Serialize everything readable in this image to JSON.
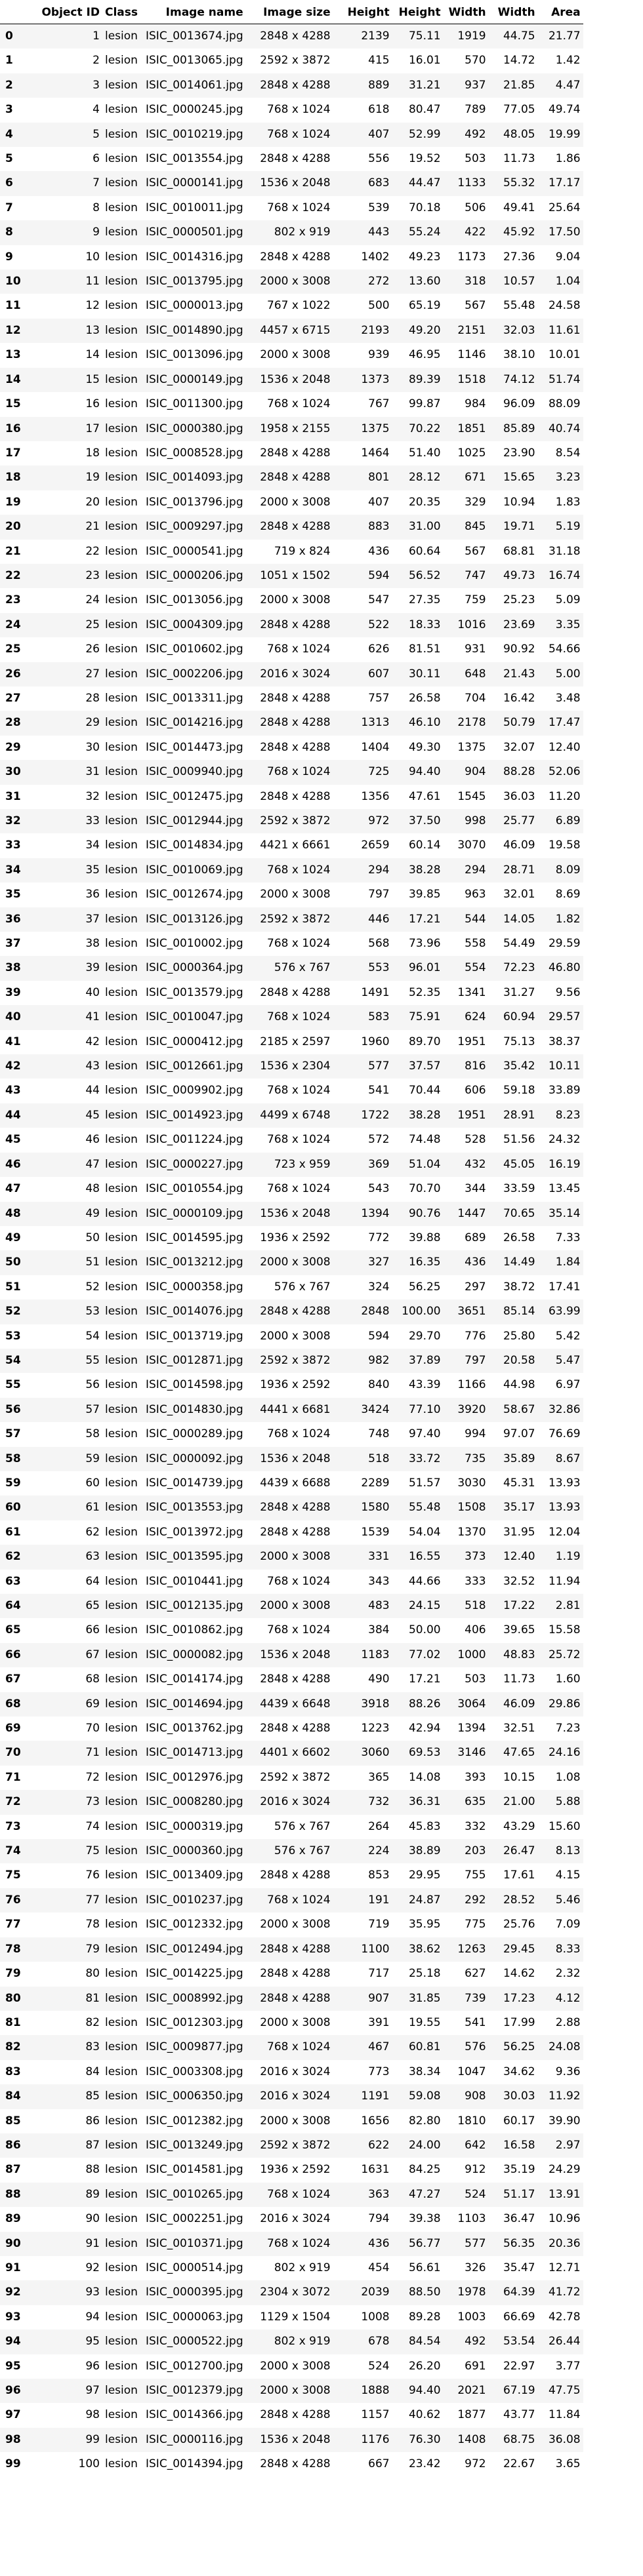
{
  "columns": [
    "",
    "Object ID",
    "Class",
    "Image name",
    "Image size",
    "Height",
    "Height",
    "Width",
    "Width",
    "Area"
  ],
  "rows": [
    [
      "0",
      "1",
      "lesion",
      "ISIC_0013674.jpg",
      "2848 x 4288",
      "2139",
      "75.11",
      "1919",
      "44.75",
      "21.77"
    ],
    [
      "1",
      "2",
      "lesion",
      "ISIC_0013065.jpg",
      "2592 x 3872",
      "415",
      "16.01",
      "570",
      "14.72",
      "1.42"
    ],
    [
      "2",
      "3",
      "lesion",
      "ISIC_0014061.jpg",
      "2848 x 4288",
      "889",
      "31.21",
      "937",
      "21.85",
      "4.47"
    ],
    [
      "3",
      "4",
      "lesion",
      "ISIC_0000245.jpg",
      "768 x 1024",
      "618",
      "80.47",
      "789",
      "77.05",
      "49.74"
    ],
    [
      "4",
      "5",
      "lesion",
      "ISIC_0010219.jpg",
      "768 x 1024",
      "407",
      "52.99",
      "492",
      "48.05",
      "19.99"
    ],
    [
      "5",
      "6",
      "lesion",
      "ISIC_0013554.jpg",
      "2848 x 4288",
      "556",
      "19.52",
      "503",
      "11.73",
      "1.86"
    ],
    [
      "6",
      "7",
      "lesion",
      "ISIC_0000141.jpg",
      "1536 x 2048",
      "683",
      "44.47",
      "1133",
      "55.32",
      "17.17"
    ],
    [
      "7",
      "8",
      "lesion",
      "ISIC_0010011.jpg",
      "768 x 1024",
      "539",
      "70.18",
      "506",
      "49.41",
      "25.64"
    ],
    [
      "8",
      "9",
      "lesion",
      "ISIC_0000501.jpg",
      "802 x 919",
      "443",
      "55.24",
      "422",
      "45.92",
      "17.50"
    ],
    [
      "9",
      "10",
      "lesion",
      "ISIC_0014316.jpg",
      "2848 x 4288",
      "1402",
      "49.23",
      "1173",
      "27.36",
      "9.04"
    ],
    [
      "10",
      "11",
      "lesion",
      "ISIC_0013795.jpg",
      "2000 x 3008",
      "272",
      "13.60",
      "318",
      "10.57",
      "1.04"
    ],
    [
      "11",
      "12",
      "lesion",
      "ISIC_0000013.jpg",
      "767 x 1022",
      "500",
      "65.19",
      "567",
      "55.48",
      "24.58"
    ],
    [
      "12",
      "13",
      "lesion",
      "ISIC_0014890.jpg",
      "4457 x 6715",
      "2193",
      "49.20",
      "2151",
      "32.03",
      "11.61"
    ],
    [
      "13",
      "14",
      "lesion",
      "ISIC_0013096.jpg",
      "2000 x 3008",
      "939",
      "46.95",
      "1146",
      "38.10",
      "10.01"
    ],
    [
      "14",
      "15",
      "lesion",
      "ISIC_0000149.jpg",
      "1536 x 2048",
      "1373",
      "89.39",
      "1518",
      "74.12",
      "51.74"
    ],
    [
      "15",
      "16",
      "lesion",
      "ISIC_0011300.jpg",
      "768 x 1024",
      "767",
      "99.87",
      "984",
      "96.09",
      "88.09"
    ],
    [
      "16",
      "17",
      "lesion",
      "ISIC_0000380.jpg",
      "1958 x 2155",
      "1375",
      "70.22",
      "1851",
      "85.89",
      "40.74"
    ],
    [
      "17",
      "18",
      "lesion",
      "ISIC_0008528.jpg",
      "2848 x 4288",
      "1464",
      "51.40",
      "1025",
      "23.90",
      "8.54"
    ],
    [
      "18",
      "19",
      "lesion",
      "ISIC_0014093.jpg",
      "2848 x 4288",
      "801",
      "28.12",
      "671",
      "15.65",
      "3.23"
    ],
    [
      "19",
      "20",
      "lesion",
      "ISIC_0013796.jpg",
      "2000 x 3008",
      "407",
      "20.35",
      "329",
      "10.94",
      "1.83"
    ],
    [
      "20",
      "21",
      "lesion",
      "ISIC_0009297.jpg",
      "2848 x 4288",
      "883",
      "31.00",
      "845",
      "19.71",
      "5.19"
    ],
    [
      "21",
      "22",
      "lesion",
      "ISIC_0000541.jpg",
      "719 x 824",
      "436",
      "60.64",
      "567",
      "68.81",
      "31.18"
    ],
    [
      "22",
      "23",
      "lesion",
      "ISIC_0000206.jpg",
      "1051 x 1502",
      "594",
      "56.52",
      "747",
      "49.73",
      "16.74"
    ],
    [
      "23",
      "24",
      "lesion",
      "ISIC_0013056.jpg",
      "2000 x 3008",
      "547",
      "27.35",
      "759",
      "25.23",
      "5.09"
    ],
    [
      "24",
      "25",
      "lesion",
      "ISIC_0004309.jpg",
      "2848 x 4288",
      "522",
      "18.33",
      "1016",
      "23.69",
      "3.35"
    ],
    [
      "25",
      "26",
      "lesion",
      "ISIC_0010602.jpg",
      "768 x 1024",
      "626",
      "81.51",
      "931",
      "90.92",
      "54.66"
    ],
    [
      "26",
      "27",
      "lesion",
      "ISIC_0002206.jpg",
      "2016 x 3024",
      "607",
      "30.11",
      "648",
      "21.43",
      "5.00"
    ],
    [
      "27",
      "28",
      "lesion",
      "ISIC_0013311.jpg",
      "2848 x 4288",
      "757",
      "26.58",
      "704",
      "16.42",
      "3.48"
    ],
    [
      "28",
      "29",
      "lesion",
      "ISIC_0014216.jpg",
      "2848 x 4288",
      "1313",
      "46.10",
      "2178",
      "50.79",
      "17.47"
    ],
    [
      "29",
      "30",
      "lesion",
      "ISIC_0014473.jpg",
      "2848 x 4288",
      "1404",
      "49.30",
      "1375",
      "32.07",
      "12.40"
    ],
    [
      "30",
      "31",
      "lesion",
      "ISIC_0009940.jpg",
      "768 x 1024",
      "725",
      "94.40",
      "904",
      "88.28",
      "52.06"
    ],
    [
      "31",
      "32",
      "lesion",
      "ISIC_0012475.jpg",
      "2848 x 4288",
      "1356",
      "47.61",
      "1545",
      "36.03",
      "11.20"
    ],
    [
      "32",
      "33",
      "lesion",
      "ISIC_0012944.jpg",
      "2592 x 3872",
      "972",
      "37.50",
      "998",
      "25.77",
      "6.89"
    ],
    [
      "33",
      "34",
      "lesion",
      "ISIC_0014834.jpg",
      "4421 x 6661",
      "2659",
      "60.14",
      "3070",
      "46.09",
      "19.58"
    ],
    [
      "34",
      "35",
      "lesion",
      "ISIC_0010069.jpg",
      "768 x 1024",
      "294",
      "38.28",
      "294",
      "28.71",
      "8.09"
    ],
    [
      "35",
      "36",
      "lesion",
      "ISIC_0012674.jpg",
      "2000 x 3008",
      "797",
      "39.85",
      "963",
      "32.01",
      "8.69"
    ],
    [
      "36",
      "37",
      "lesion",
      "ISIC_0013126.jpg",
      "2592 x 3872",
      "446",
      "17.21",
      "544",
      "14.05",
      "1.82"
    ],
    [
      "37",
      "38",
      "lesion",
      "ISIC_0010002.jpg",
      "768 x 1024",
      "568",
      "73.96",
      "558",
      "54.49",
      "29.59"
    ],
    [
      "38",
      "39",
      "lesion",
      "ISIC_0000364.jpg",
      "576 x 767",
      "553",
      "96.01",
      "554",
      "72.23",
      "46.80"
    ],
    [
      "39",
      "40",
      "lesion",
      "ISIC_0013579.jpg",
      "2848 x 4288",
      "1491",
      "52.35",
      "1341",
      "31.27",
      "9.56"
    ],
    [
      "40",
      "41",
      "lesion",
      "ISIC_0010047.jpg",
      "768 x 1024",
      "583",
      "75.91",
      "624",
      "60.94",
      "29.57"
    ],
    [
      "41",
      "42",
      "lesion",
      "ISIC_0000412.jpg",
      "2185 x 2597",
      "1960",
      "89.70",
      "1951",
      "75.13",
      "38.37"
    ],
    [
      "42",
      "43",
      "lesion",
      "ISIC_0012661.jpg",
      "1536 x 2304",
      "577",
      "37.57",
      "816",
      "35.42",
      "10.11"
    ],
    [
      "43",
      "44",
      "lesion",
      "ISIC_0009902.jpg",
      "768 x 1024",
      "541",
      "70.44",
      "606",
      "59.18",
      "33.89"
    ],
    [
      "44",
      "45",
      "lesion",
      "ISIC_0014923.jpg",
      "4499 x 6748",
      "1722",
      "38.28",
      "1951",
      "28.91",
      "8.23"
    ],
    [
      "45",
      "46",
      "lesion",
      "ISIC_0011224.jpg",
      "768 x 1024",
      "572",
      "74.48",
      "528",
      "51.56",
      "24.32"
    ],
    [
      "46",
      "47",
      "lesion",
      "ISIC_0000227.jpg",
      "723 x 959",
      "369",
      "51.04",
      "432",
      "45.05",
      "16.19"
    ],
    [
      "47",
      "48",
      "lesion",
      "ISIC_0010554.jpg",
      "768 x 1024",
      "543",
      "70.70",
      "344",
      "33.59",
      "13.45"
    ],
    [
      "48",
      "49",
      "lesion",
      "ISIC_0000109.jpg",
      "1536 x 2048",
      "1394",
      "90.76",
      "1447",
      "70.65",
      "35.14"
    ],
    [
      "49",
      "50",
      "lesion",
      "ISIC_0014595.jpg",
      "1936 x 2592",
      "772",
      "39.88",
      "689",
      "26.58",
      "7.33"
    ],
    [
      "50",
      "51",
      "lesion",
      "ISIC_0013212.jpg",
      "2000 x 3008",
      "327",
      "16.35",
      "436",
      "14.49",
      "1.84"
    ],
    [
      "51",
      "52",
      "lesion",
      "ISIC_0000358.jpg",
      "576 x 767",
      "324",
      "56.25",
      "297",
      "38.72",
      "17.41"
    ],
    [
      "52",
      "53",
      "lesion",
      "ISIC_0014076.jpg",
      "2848 x 4288",
      "2848",
      "100.00",
      "3651",
      "85.14",
      "63.99"
    ],
    [
      "53",
      "54",
      "lesion",
      "ISIC_0013719.jpg",
      "2000 x 3008",
      "594",
      "29.70",
      "776",
      "25.80",
      "5.42"
    ],
    [
      "54",
      "55",
      "lesion",
      "ISIC_0012871.jpg",
      "2592 x 3872",
      "982",
      "37.89",
      "797",
      "20.58",
      "5.47"
    ],
    [
      "55",
      "56",
      "lesion",
      "ISIC_0014598.jpg",
      "1936 x 2592",
      "840",
      "43.39",
      "1166",
      "44.98",
      "6.97"
    ],
    [
      "56",
      "57",
      "lesion",
      "ISIC_0014830.jpg",
      "4441 x 6681",
      "3424",
      "77.10",
      "3920",
      "58.67",
      "32.86"
    ],
    [
      "57",
      "58",
      "lesion",
      "ISIC_0000289.jpg",
      "768 x 1024",
      "748",
      "97.40",
      "994",
      "97.07",
      "76.69"
    ],
    [
      "58",
      "59",
      "lesion",
      "ISIC_0000092.jpg",
      "1536 x 2048",
      "518",
      "33.72",
      "735",
      "35.89",
      "8.67"
    ],
    [
      "59",
      "60",
      "lesion",
      "ISIC_0014739.jpg",
      "4439 x 6688",
      "2289",
      "51.57",
      "3030",
      "45.31",
      "13.93"
    ],
    [
      "60",
      "61",
      "lesion",
      "ISIC_0013553.jpg",
      "2848 x 4288",
      "1580",
      "55.48",
      "1508",
      "35.17",
      "13.93"
    ],
    [
      "61",
      "62",
      "lesion",
      "ISIC_0013972.jpg",
      "2848 x 4288",
      "1539",
      "54.04",
      "1370",
      "31.95",
      "12.04"
    ],
    [
      "62",
      "63",
      "lesion",
      "ISIC_0013595.jpg",
      "2000 x 3008",
      "331",
      "16.55",
      "373",
      "12.40",
      "1.19"
    ],
    [
      "63",
      "64",
      "lesion",
      "ISIC_0010441.jpg",
      "768 x 1024",
      "343",
      "44.66",
      "333",
      "32.52",
      "11.94"
    ],
    [
      "64",
      "65",
      "lesion",
      "ISIC_0012135.jpg",
      "2000 x 3008",
      "483",
      "24.15",
      "518",
      "17.22",
      "2.81"
    ],
    [
      "65",
      "66",
      "lesion",
      "ISIC_0010862.jpg",
      "768 x 1024",
      "384",
      "50.00",
      "406",
      "39.65",
      "15.58"
    ],
    [
      "66",
      "67",
      "lesion",
      "ISIC_0000082.jpg",
      "1536 x 2048",
      "1183",
      "77.02",
      "1000",
      "48.83",
      "25.72"
    ],
    [
      "67",
      "68",
      "lesion",
      "ISIC_0014174.jpg",
      "2848 x 4288",
      "490",
      "17.21",
      "503",
      "11.73",
      "1.60"
    ],
    [
      "68",
      "69",
      "lesion",
      "ISIC_0014694.jpg",
      "4439 x 6648",
      "3918",
      "88.26",
      "3064",
      "46.09",
      "29.86"
    ],
    [
      "69",
      "70",
      "lesion",
      "ISIC_0013762.jpg",
      "2848 x 4288",
      "1223",
      "42.94",
      "1394",
      "32.51",
      "7.23"
    ],
    [
      "70",
      "71",
      "lesion",
      "ISIC_0014713.jpg",
      "4401 x 6602",
      "3060",
      "69.53",
      "3146",
      "47.65",
      "24.16"
    ],
    [
      "71",
      "72",
      "lesion",
      "ISIC_0012976.jpg",
      "2592 x 3872",
      "365",
      "14.08",
      "393",
      "10.15",
      "1.08"
    ],
    [
      "72",
      "73",
      "lesion",
      "ISIC_0008280.jpg",
      "2016 x 3024",
      "732",
      "36.31",
      "635",
      "21.00",
      "5.88"
    ],
    [
      "73",
      "74",
      "lesion",
      "ISIC_0000319.jpg",
      "576 x 767",
      "264",
      "45.83",
      "332",
      "43.29",
      "15.60"
    ],
    [
      "74",
      "75",
      "lesion",
      "ISIC_0000360.jpg",
      "576 x 767",
      "224",
      "38.89",
      "203",
      "26.47",
      "8.13"
    ],
    [
      "75",
      "76",
      "lesion",
      "ISIC_0013409.jpg",
      "2848 x 4288",
      "853",
      "29.95",
      "755",
      "17.61",
      "4.15"
    ],
    [
      "76",
      "77",
      "lesion",
      "ISIC_0010237.jpg",
      "768 x 1024",
      "191",
      "24.87",
      "292",
      "28.52",
      "5.46"
    ],
    [
      "77",
      "78",
      "lesion",
      "ISIC_0012332.jpg",
      "2000 x 3008",
      "719",
      "35.95",
      "775",
      "25.76",
      "7.09"
    ],
    [
      "78",
      "79",
      "lesion",
      "ISIC_0012494.jpg",
      "2848 x 4288",
      "1100",
      "38.62",
      "1263",
      "29.45",
      "8.33"
    ],
    [
      "79",
      "80",
      "lesion",
      "ISIC_0014225.jpg",
      "2848 x 4288",
      "717",
      "25.18",
      "627",
      "14.62",
      "2.32"
    ],
    [
      "80",
      "81",
      "lesion",
      "ISIC_0008992.jpg",
      "2848 x 4288",
      "907",
      "31.85",
      "739",
      "17.23",
      "4.12"
    ],
    [
      "81",
      "82",
      "lesion",
      "ISIC_0012303.jpg",
      "2000 x 3008",
      "391",
      "19.55",
      "541",
      "17.99",
      "2.88"
    ],
    [
      "82",
      "83",
      "lesion",
      "ISIC_0009877.jpg",
      "768 x 1024",
      "467",
      "60.81",
      "576",
      "56.25",
      "24.08"
    ],
    [
      "83",
      "84",
      "lesion",
      "ISIC_0003308.jpg",
      "2016 x 3024",
      "773",
      "38.34",
      "1047",
      "34.62",
      "9.36"
    ],
    [
      "84",
      "85",
      "lesion",
      "ISIC_0006350.jpg",
      "2016 x 3024",
      "1191",
      "59.08",
      "908",
      "30.03",
      "11.92"
    ],
    [
      "85",
      "86",
      "lesion",
      "ISIC_0012382.jpg",
      "2000 x 3008",
      "1656",
      "82.80",
      "1810",
      "60.17",
      "39.90"
    ],
    [
      "86",
      "87",
      "lesion",
      "ISIC_0013249.jpg",
      "2592 x 3872",
      "622",
      "24.00",
      "642",
      "16.58",
      "2.97"
    ],
    [
      "87",
      "88",
      "lesion",
      "ISIC_0014581.jpg",
      "1936 x 2592",
      "1631",
      "84.25",
      "912",
      "35.19",
      "24.29"
    ],
    [
      "88",
      "89",
      "lesion",
      "ISIC_0010265.jpg",
      "768 x 1024",
      "363",
      "47.27",
      "524",
      "51.17",
      "13.91"
    ],
    [
      "89",
      "90",
      "lesion",
      "ISIC_0002251.jpg",
      "2016 x 3024",
      "794",
      "39.38",
      "1103",
      "36.47",
      "10.96"
    ],
    [
      "90",
      "91",
      "lesion",
      "ISIC_0010371.jpg",
      "768 x 1024",
      "436",
      "56.77",
      "577",
      "56.35",
      "20.36"
    ],
    [
      "91",
      "92",
      "lesion",
      "ISIC_0000514.jpg",
      "802 x 919",
      "454",
      "56.61",
      "326",
      "35.47",
      "12.71"
    ],
    [
      "92",
      "93",
      "lesion",
      "ISIC_0000395.jpg",
      "2304 x 3072",
      "2039",
      "88.50",
      "1978",
      "64.39",
      "41.72"
    ],
    [
      "93",
      "94",
      "lesion",
      "ISIC_0000063.jpg",
      "1129 x 1504",
      "1008",
      "89.28",
      "1003",
      "66.69",
      "42.78"
    ],
    [
      "94",
      "95",
      "lesion",
      "ISIC_0000522.jpg",
      "802 x 919",
      "678",
      "84.54",
      "492",
      "53.54",
      "26.44"
    ],
    [
      "95",
      "96",
      "lesion",
      "ISIC_0012700.jpg",
      "2000 x 3008",
      "524",
      "26.20",
      "691",
      "22.97",
      "3.77"
    ],
    [
      "96",
      "97",
      "lesion",
      "ISIC_0012379.jpg",
      "2000 x 3008",
      "1888",
      "94.40",
      "2021",
      "67.19",
      "47.75"
    ],
    [
      "97",
      "98",
      "lesion",
      "ISIC_0014366.jpg",
      "2848 x 4288",
      "1157",
      "40.62",
      "1877",
      "43.77",
      "11.84"
    ],
    [
      "98",
      "99",
      "lesion",
      "ISIC_0000116.jpg",
      "1536 x 2048",
      "1176",
      "76.30",
      "1408",
      "68.75",
      "36.08"
    ],
    [
      "99",
      "100",
      "lesion",
      "ISIC_0014394.jpg",
      "2848 x 4288",
      "667",
      "23.42",
      "972",
      "22.67",
      "3.65"
    ]
  ]
}
